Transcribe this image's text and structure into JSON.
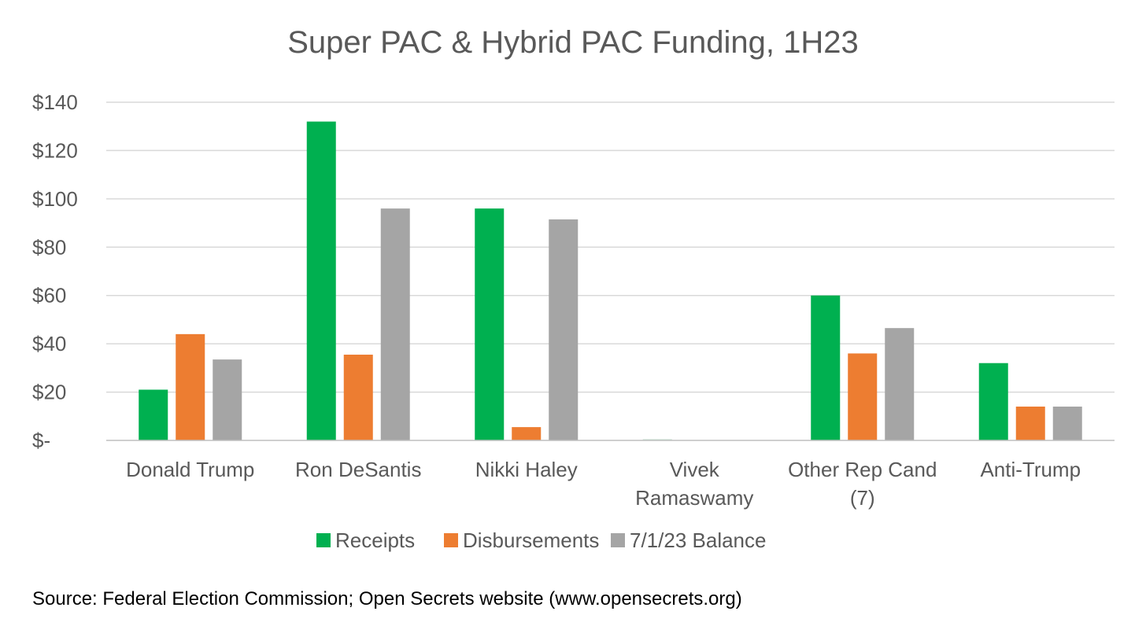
{
  "chart_data": {
    "type": "bar",
    "title": "Super PAC & Hybrid PAC Funding, 1H23",
    "xlabel": "",
    "ylabel": "",
    "ylim": [
      0,
      140
    ],
    "yticks": [
      0,
      20,
      40,
      60,
      80,
      100,
      120,
      140
    ],
    "ytick_labels": [
      "$-",
      "$20",
      "$40",
      "$60",
      "$80",
      "$100",
      "$120",
      "$140"
    ],
    "grid": true,
    "legend_position": "bottom",
    "categories": [
      [
        "Donald Trump"
      ],
      [
        "Ron DeSantis"
      ],
      [
        "Nikki Haley"
      ],
      [
        "Vivek",
        "Ramaswamy"
      ],
      [
        "Other Rep Cand",
        "(7)"
      ],
      [
        "Anti-Trump"
      ]
    ],
    "series": [
      {
        "name": "Receipts",
        "color": "#00B050",
        "values": [
          21,
          132,
          96,
          0.5,
          60,
          32
        ]
      },
      {
        "name": "Disbursements",
        "color": "#ED7D31",
        "values": [
          44,
          35.5,
          5.5,
          0,
          36,
          14
        ]
      },
      {
        "name": "7/1/23 Balance",
        "color": "#A5A5A5",
        "values": [
          33.5,
          96,
          91.5,
          0,
          46.5,
          14
        ]
      }
    ],
    "source": "Source: Federal Election Commission; Open Secrets website (www.opensecrets.org)"
  },
  "colors": {
    "text": "#595959",
    "gridline": "#D9D9D9",
    "axis": "#BFBFBF",
    "background": "#FFFFFF"
  }
}
